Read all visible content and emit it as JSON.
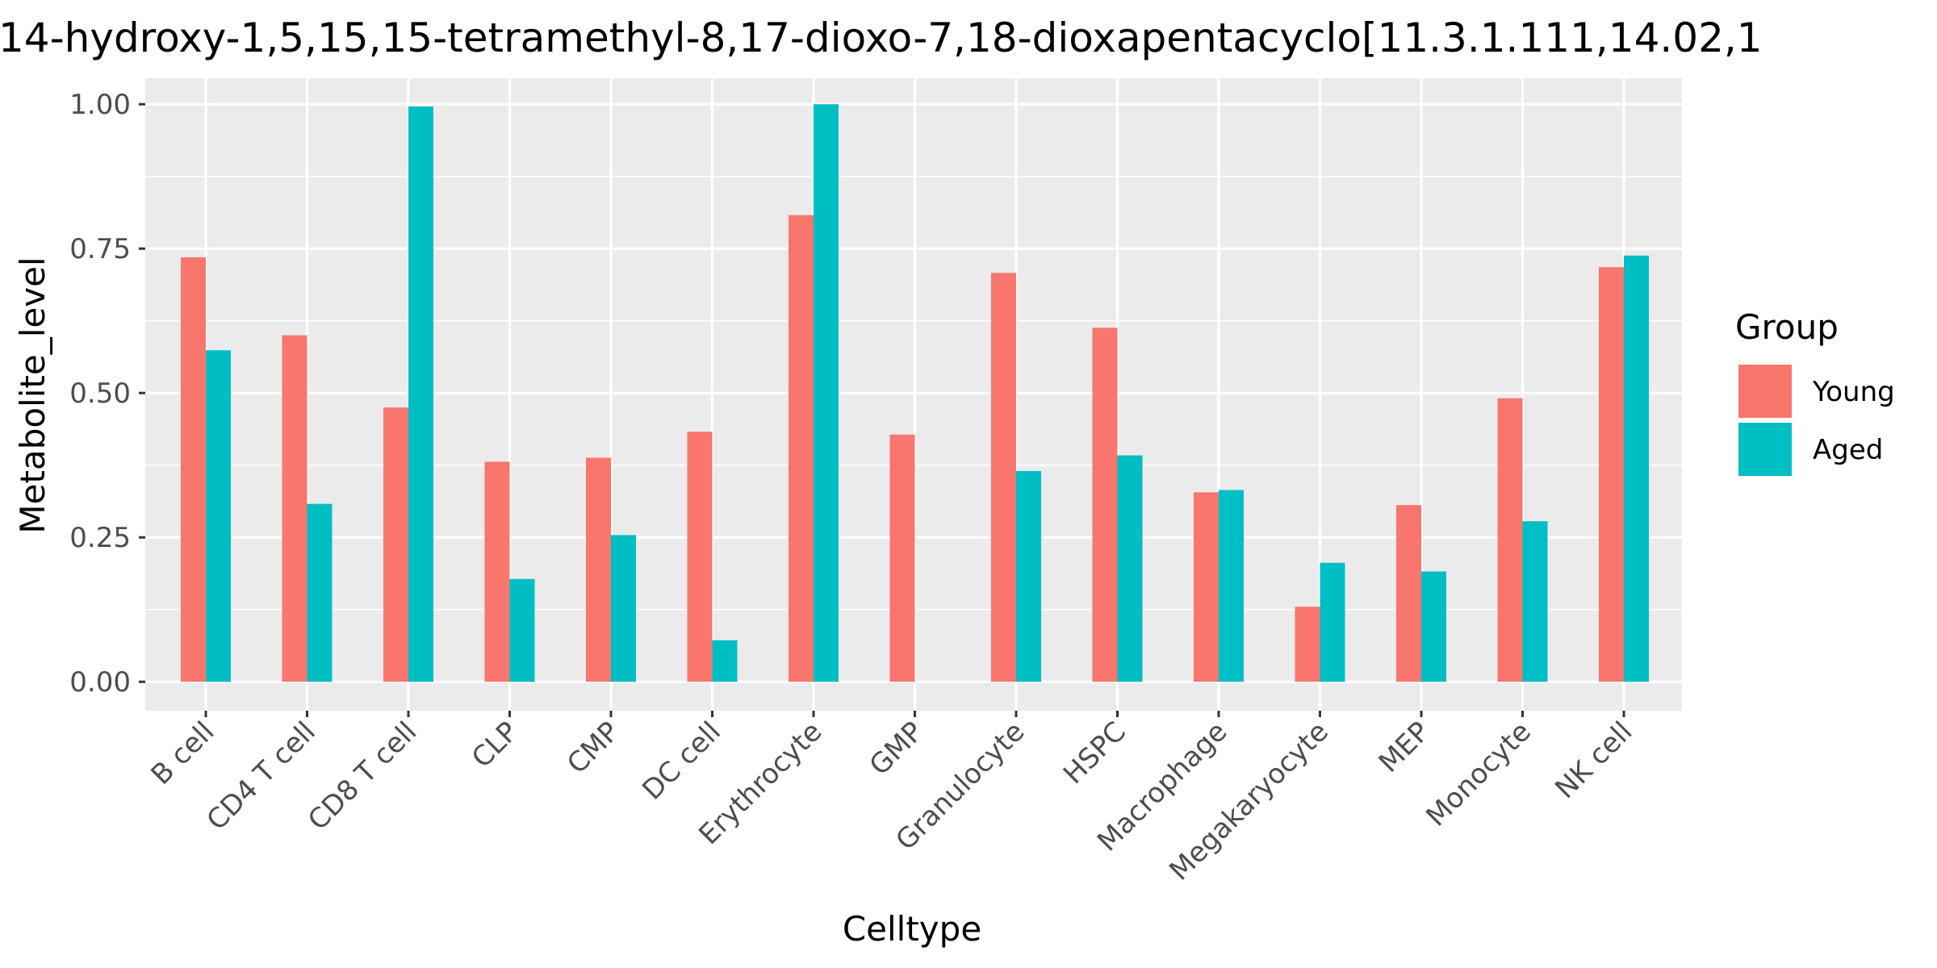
{
  "chart_data": {
    "type": "bar",
    "title": "14-hydroxy-1,5,15,15-tetramethyl-8,17-dioxo-7,18-dioxapentacyclo[11.3.1.111,14.02,1",
    "xlabel": "Celltype",
    "ylabel": "Metabolite_level",
    "categories": [
      "B cell",
      "CD4 T cell",
      "CD8 T cell",
      "CLP",
      "CMP",
      "DC cell",
      "Erythrocyte",
      "GMP",
      "Granulocyte",
      "HSPC",
      "Macrophage",
      "Megakaryocyte",
      "MEP",
      "Monocyte",
      "NK cell"
    ],
    "series": [
      {
        "name": "Young",
        "color": "#F8766D",
        "values": [
          0.735,
          0.6,
          0.475,
          0.381,
          0.388,
          0.433,
          0.808,
          0.428,
          0.708,
          0.613,
          0.328,
          0.13,
          0.306,
          0.491,
          0.718
        ]
      },
      {
        "name": "Aged",
        "color": "#00BFC4",
        "values": [
          0.574,
          0.308,
          0.996,
          0.178,
          0.254,
          0.072,
          1.0,
          0.0,
          0.365,
          0.392,
          0.332,
          0.206,
          0.191,
          0.278,
          0.738
        ]
      }
    ],
    "ylim": [
      -0.05,
      1.045
    ],
    "yticks": [
      0,
      0.25,
      0.5,
      0.75,
      1.0
    ],
    "ytick_labels": [
      "0.00",
      "0.25",
      "0.50",
      "0.75",
      "1.00"
    ],
    "legend": {
      "title": "Group",
      "position": "right"
    },
    "grid": true,
    "panel_color": "#EBEBEB",
    "grid_color": "#FFFFFF"
  }
}
